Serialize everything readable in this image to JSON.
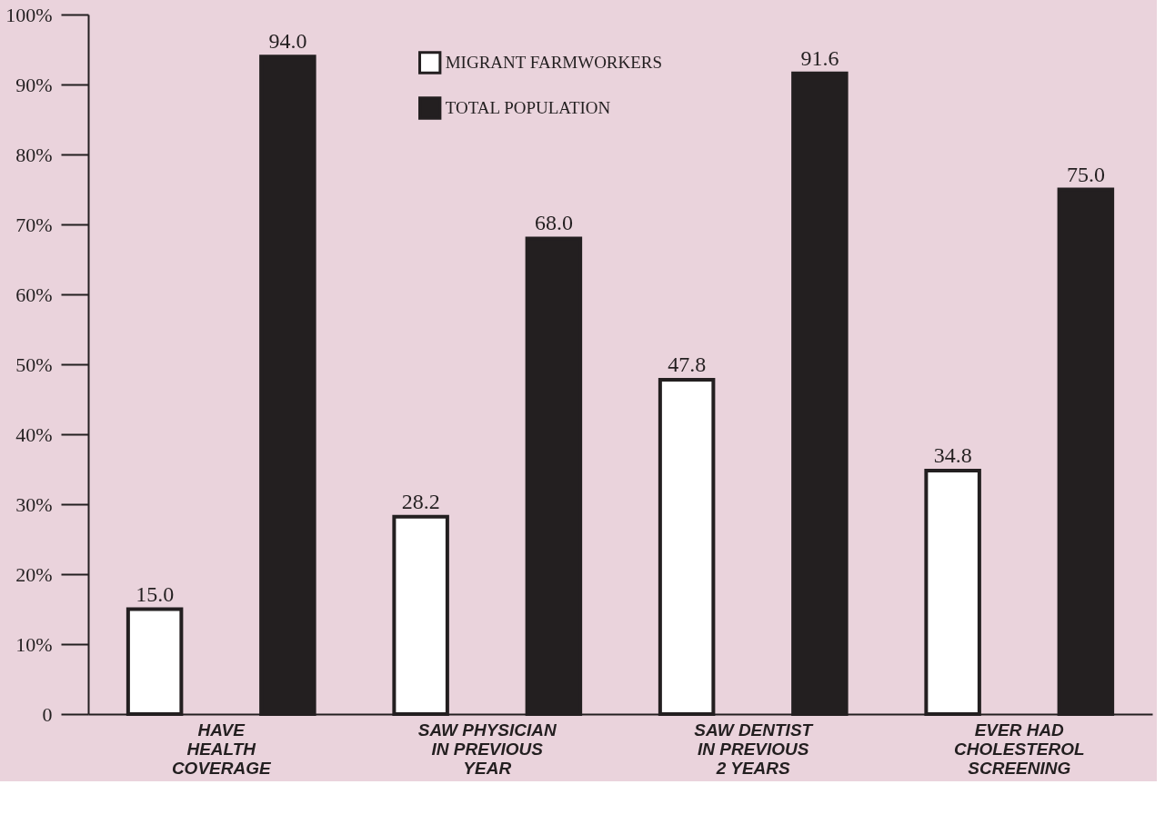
{
  "chart_data": {
    "type": "bar",
    "categories": [
      "HAVE\nHEALTH\nCOVERAGE",
      "SAW PHYSICIAN\nIN PREVIOUS\nYEAR",
      "SAW DENTIST\nIN PREVIOUS\n2 YEARS",
      "EVER HAD\nCHOLESTEROL\nSCREENING"
    ],
    "series": [
      {
        "name": "MIGRANT FARMWORKERS",
        "color": "#ffffff",
        "values": [
          15.0,
          28.2,
          47.8,
          34.8
        ],
        "value_labels": [
          "15.0",
          "28.2",
          "47.8",
          "34.8"
        ]
      },
      {
        "name": "TOTAL POPULATION",
        "color": "#231f20",
        "values": [
          94.0,
          68.0,
          91.6,
          75.0
        ],
        "value_labels": [
          "94.0",
          "68.0",
          "91.6",
          "75.0"
        ]
      }
    ],
    "ylim": [
      0,
      100
    ],
    "yticks": [
      0,
      {
        "value": 10,
        "label": "10%"
      },
      {
        "value": 20,
        "label": "20%"
      },
      {
        "value": 30,
        "label": "30%"
      },
      {
        "value": 40,
        "label": "40%"
      },
      {
        "value": 50,
        "label": "50%"
      },
      {
        "value": 60,
        "label": "60%"
      },
      {
        "value": 70,
        "label": "70%"
      },
      {
        "value": 80,
        "label": "80%"
      },
      {
        "value": 90,
        "label": "90%"
      },
      {
        "value": 100,
        "label": "100%"
      }
    ],
    "grid": false,
    "legend": "top"
  }
}
